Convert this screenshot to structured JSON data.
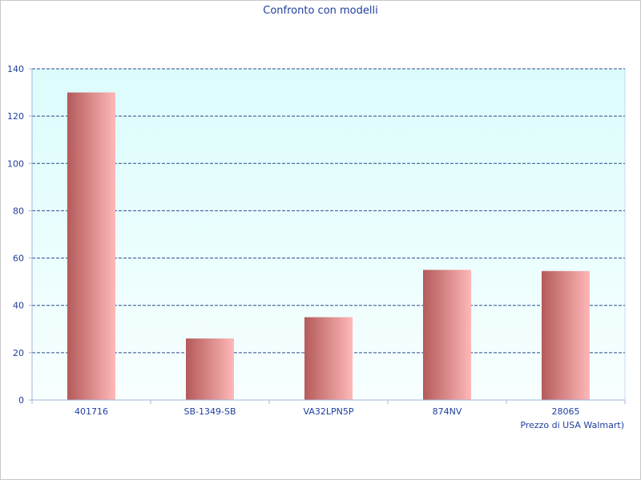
{
  "chart_data": {
    "type": "bar",
    "title": "Confronto con modelli",
    "xlabel": "Prezzo di USA Walmart)",
    "ylabel": "",
    "categories": [
      "401716",
      "SB-1349-SB",
      "VA32LPN5P",
      "874NV",
      "28065"
    ],
    "series": [
      {
        "values": [
          130,
          26,
          35,
          55,
          54.5
        ]
      }
    ],
    "ylim": [
      0,
      140
    ],
    "yticks": [
      0,
      20,
      40,
      60,
      80,
      100,
      120,
      140
    ],
    "grid": true,
    "colors": {
      "bar_dark": "#b45a5a",
      "bar_light": "#ffb8b8",
      "plot_bg_top": "#dcfcfc",
      "plot_bg_bottom": "#f8ffff",
      "grid": "#2c4a8c",
      "axis": "#a0b4dc",
      "text": "#1f3fa0"
    }
  }
}
